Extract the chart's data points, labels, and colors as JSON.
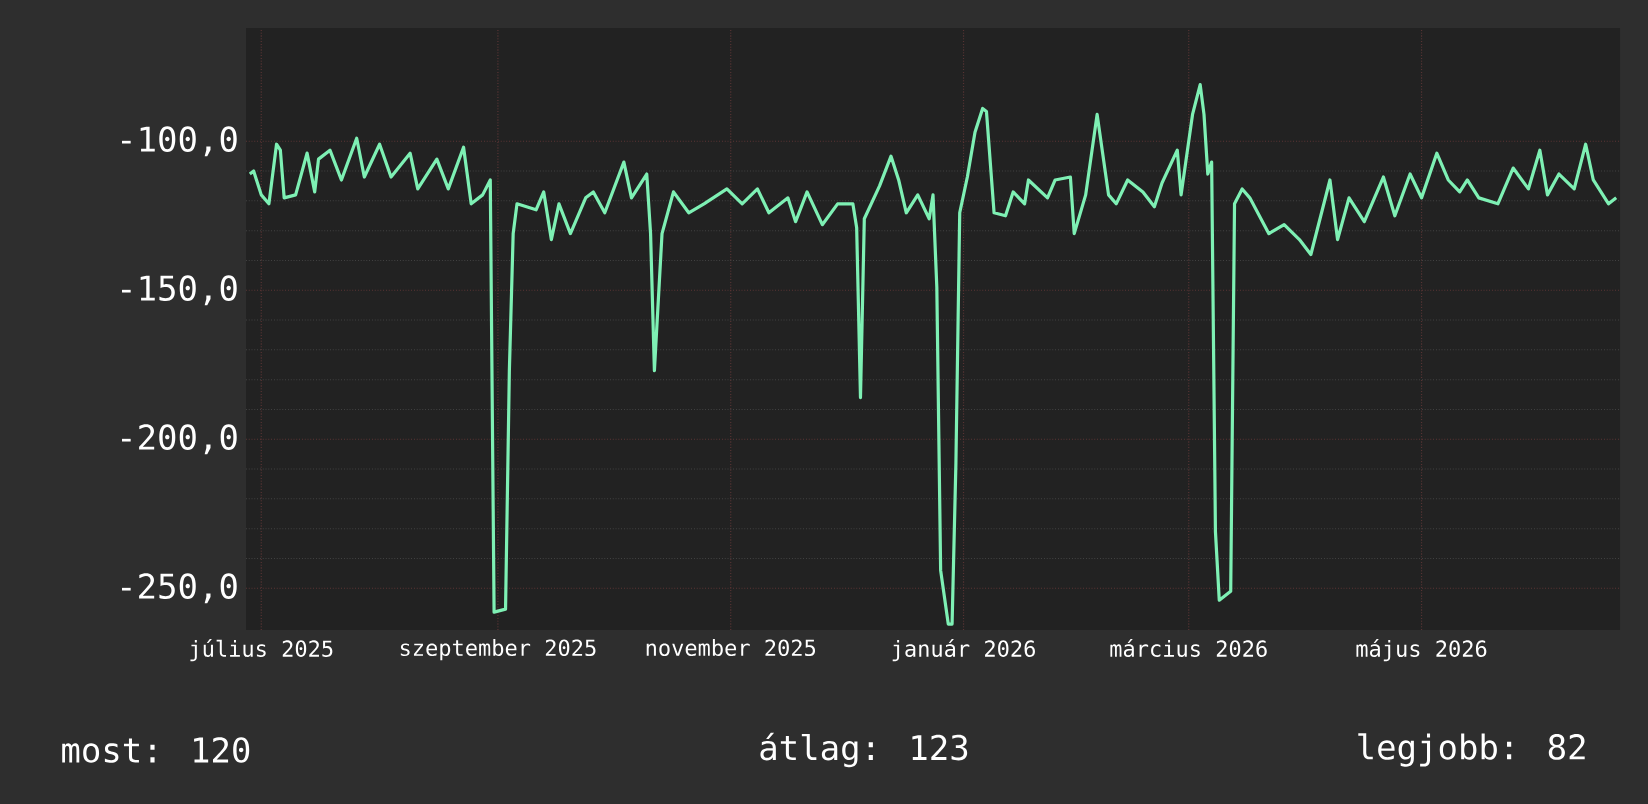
{
  "chart_data": {
    "type": "line",
    "x": [
      "2025-06-28",
      "2025-06-29",
      "2025-07-01",
      "2025-07-03",
      "2025-07-05",
      "2025-07-06",
      "2025-07-07",
      "2025-07-10",
      "2025-07-13",
      "2025-07-15",
      "2025-07-16",
      "2025-07-19",
      "2025-07-22",
      "2025-07-26",
      "2025-07-28",
      "2025-08-01",
      "2025-08-04",
      "2025-08-09",
      "2025-08-11",
      "2025-08-16",
      "2025-08-19",
      "2025-08-23",
      "2025-08-25",
      "2025-08-28",
      "2025-08-30",
      "2025-08-31",
      "2025-09-03",
      "2025-09-04",
      "2025-09-05",
      "2025-09-06",
      "2025-09-11",
      "2025-09-13",
      "2025-09-15",
      "2025-09-17",
      "2025-09-20",
      "2025-09-24",
      "2025-09-26",
      "2025-09-29",
      "2025-10-04",
      "2025-10-06",
      "2025-10-10",
      "2025-10-11",
      "2025-10-12",
      "2025-10-14",
      "2025-10-17",
      "2025-10-21",
      "2025-10-25",
      "2025-10-31",
      "2025-11-04",
      "2025-11-08",
      "2025-11-11",
      "2025-11-16",
      "2025-11-18",
      "2025-11-21",
      "2025-11-25",
      "2025-11-29",
      "2025-12-03",
      "2025-12-04",
      "2025-12-05",
      "2025-12-06",
      "2025-12-10",
      "2025-12-13",
      "2025-12-15",
      "2025-12-17",
      "2025-12-20",
      "2025-12-23",
      "2025-12-24",
      "2025-12-25",
      "2025-12-26",
      "2025-12-28",
      "2025-12-29",
      "2025-12-30",
      "2025-12-31",
      "2026-01-02",
      "2026-01-04",
      "2026-01-06",
      "2026-01-07",
      "2026-01-09",
      "2026-01-12",
      "2026-01-14",
      "2026-01-17",
      "2026-01-18",
      "2026-01-23",
      "2026-01-25",
      "2026-01-29",
      "2026-01-30",
      "2026-02-02",
      "2026-02-05",
      "2026-02-08",
      "2026-02-10",
      "2026-02-13",
      "2026-02-17",
      "2026-02-20",
      "2026-02-22",
      "2026-02-26",
      "2026-02-27",
      "2026-03-02",
      "2026-03-04",
      "2026-03-05",
      "2026-03-06",
      "2026-03-07",
      "2026-03-08",
      "2026-03-09",
      "2026-03-12",
      "2026-03-13",
      "2026-03-15",
      "2026-03-17",
      "2026-03-22",
      "2026-03-26",
      "2026-03-30",
      "2026-04-02",
      "2026-04-07",
      "2026-04-09",
      "2026-04-12",
      "2026-04-16",
      "2026-04-21",
      "2026-04-24",
      "2026-04-28",
      "2026-05-01",
      "2026-05-05",
      "2026-05-08",
      "2026-05-11",
      "2026-05-13",
      "2026-05-16",
      "2026-05-21",
      "2026-05-25",
      "2026-05-29",
      "2026-06-01",
      "2026-06-03",
      "2026-06-06",
      "2026-06-10",
      "2026-06-13",
      "2026-06-15",
      "2026-06-19",
      "2026-06-21"
    ],
    "series": [
      {
        "color": "#7ef0b4",
        "values": [
          -111,
          -110,
          -118,
          -121,
          -101,
          -103,
          -119,
          -118,
          -104,
          -117,
          -106,
          -103,
          -113,
          -99,
          -112,
          -101,
          -112,
          -104,
          -116,
          -106,
          -116,
          -102,
          -121,
          -118,
          -113,
          -258,
          -257,
          -177,
          -131,
          -121,
          -123,
          -117,
          -133,
          -121,
          -131,
          -119,
          -117,
          -124,
          -107,
          -119,
          -111,
          -131,
          -177,
          -131,
          -117,
          -124,
          -121,
          -116,
          -121,
          -116,
          -124,
          -119,
          -127,
          -117,
          -128,
          -121,
          -121,
          -129,
          -186,
          -126,
          -115,
          -105,
          -113,
          -124,
          -118,
          -126,
          -118,
          -149,
          -244,
          -262,
          -262,
          -208,
          -124,
          -112,
          -97,
          -89,
          -90,
          -124,
          -125,
          -117,
          -121,
          -113,
          -119,
          -113,
          -112,
          -131,
          -118,
          -91,
          -118,
          -121,
          -113,
          -117,
          -122,
          -114,
          -103,
          -118,
          -91,
          -81,
          -91,
          -111,
          -107,
          -231,
          -254,
          -251,
          -121,
          -116,
          -119,
          -131,
          -128,
          -133,
          -138,
          -113,
          -133,
          -119,
          -127,
          -112,
          -125,
          -111,
          -119,
          -104,
          -113,
          -117,
          -113,
          -119,
          -121,
          -109,
          -116,
          -103,
          -118,
          -111,
          -116,
          -101,
          -113,
          -121,
          -119
        ]
      }
    ],
    "xlim": [
      "2025-06-27",
      "2026-06-22"
    ],
    "xticks": [
      {
        "value": "2025-07-01",
        "label": "július 2025"
      },
      {
        "value": "2025-09-01",
        "label": "szeptember 2025"
      },
      {
        "value": "2025-11-01",
        "label": "november 2025"
      },
      {
        "value": "2026-01-01",
        "label": "január 2026"
      },
      {
        "value": "2026-03-01",
        "label": "március 2026"
      },
      {
        "value": "2026-05-01",
        "label": "május 2026"
      }
    ],
    "ylim": [
      -264,
      -62
    ],
    "yticks": [
      {
        "value": -100,
        "label": "-100,0"
      },
      {
        "value": -150,
        "label": "-150,0"
      },
      {
        "value": -200,
        "label": "-200,0"
      },
      {
        "value": -250,
        "label": "-250,0"
      }
    ],
    "grid": true,
    "annotations": [
      "most: 120",
      "átlag: 123",
      "legjobb: 82"
    ]
  }
}
